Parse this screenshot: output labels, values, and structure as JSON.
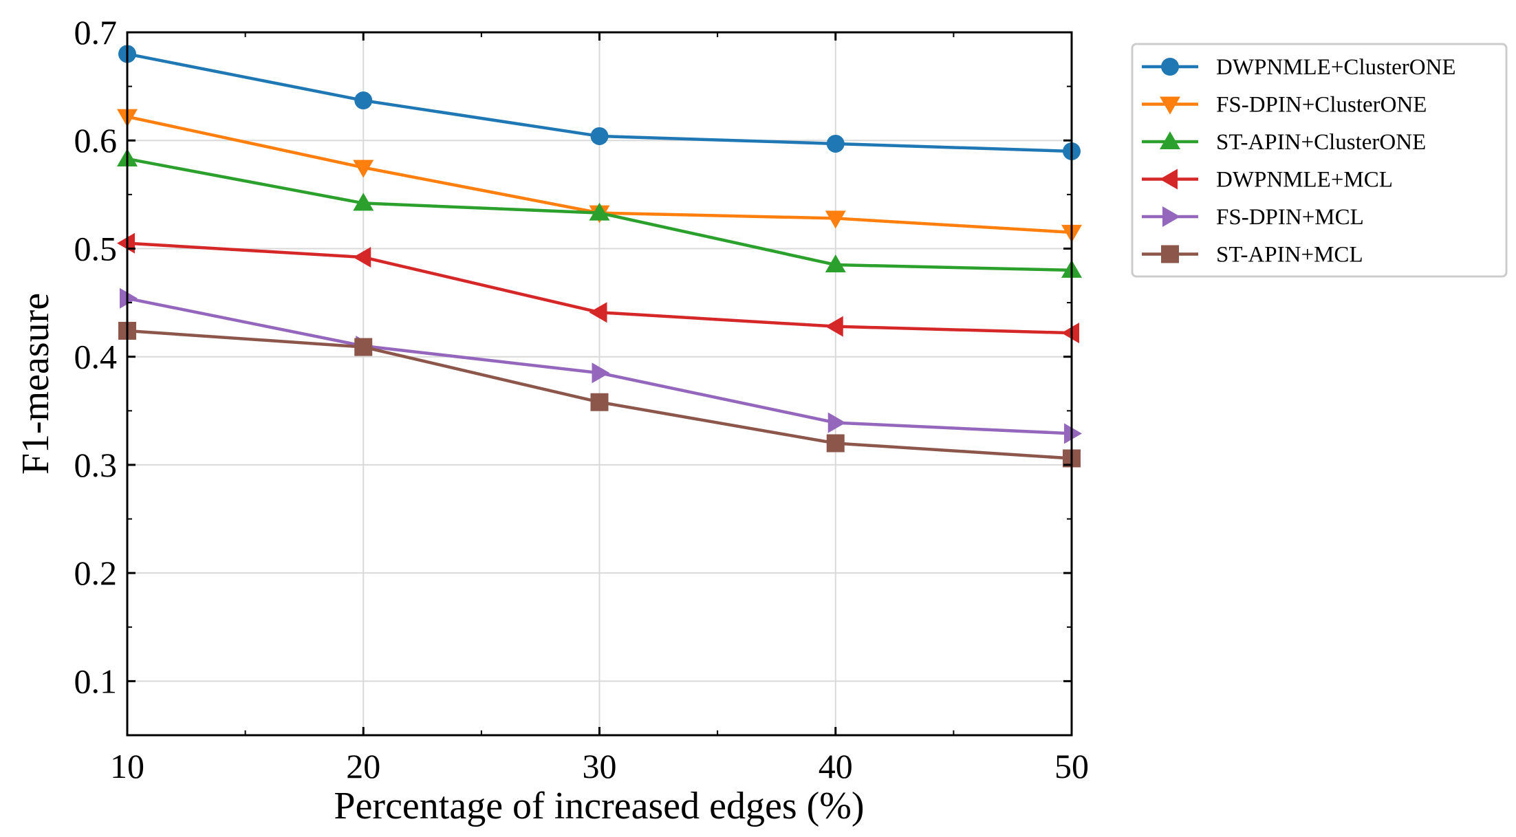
{
  "chart_data": {
    "type": "line",
    "title": "",
    "xlabel": "Percentage of increased edges (%)",
    "ylabel": "F1-measure",
    "x": [
      10,
      20,
      30,
      40,
      50
    ],
    "xlim": [
      10,
      50
    ],
    "ylim": [
      0.05,
      0.7
    ],
    "xticks": [
      "10",
      "20",
      "30",
      "40",
      "50"
    ],
    "yticks": [
      "0.1",
      "0.2",
      "0.3",
      "0.4",
      "0.5",
      "0.6",
      "0.7"
    ],
    "grid": true,
    "legend_position": "outside-top-right",
    "series": [
      {
        "name": "DWPNMLE+ClusterONE",
        "color": "#1f77b4",
        "marker": "circle",
        "values": [
          0.68,
          0.637,
          0.604,
          0.597,
          0.59
        ]
      },
      {
        "name": "FS-DPIN+ClusterONE",
        "color": "#ff7f0e",
        "marker": "triangle-down",
        "values": [
          0.622,
          0.575,
          0.533,
          0.528,
          0.515
        ]
      },
      {
        "name": "ST-APIN+ClusterONE",
        "color": "#2ca02c",
        "marker": "triangle-up",
        "values": [
          0.583,
          0.542,
          0.533,
          0.485,
          0.48
        ]
      },
      {
        "name": "DWPNMLE+MCL",
        "color": "#d62728",
        "marker": "triangle-left",
        "values": [
          0.505,
          0.492,
          0.441,
          0.428,
          0.422
        ]
      },
      {
        "name": "FS-DPIN+MCL",
        "color": "#9467bd",
        "marker": "triangle-right",
        "values": [
          0.454,
          0.41,
          0.385,
          0.339,
          0.329
        ]
      },
      {
        "name": "ST-APIN+MCL",
        "color": "#8c564b",
        "marker": "square",
        "values": [
          0.424,
          0.409,
          0.358,
          0.32,
          0.306
        ]
      }
    ]
  }
}
